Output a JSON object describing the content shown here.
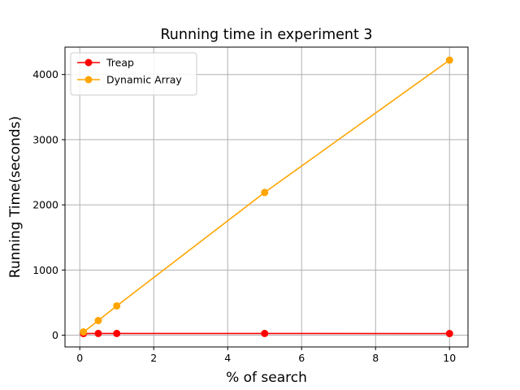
{
  "chart_data": {
    "type": "line",
    "title": "Running time in experiment 3",
    "xlabel": "% of search",
    "ylabel": "Running Time(seconds)",
    "xlim": [
      -0.4,
      10.5
    ],
    "ylim": [
      -180,
      4420
    ],
    "xticks": [
      0,
      2,
      4,
      6,
      8,
      10
    ],
    "yticks": [
      0,
      1000,
      2000,
      3000,
      4000
    ],
    "grid": true,
    "legend_position": "top-left",
    "series": [
      {
        "name": "Treap",
        "color": "#ff0000",
        "x": [
          0.1,
          0.5,
          1,
          5,
          10
        ],
        "y": [
          25,
          27,
          27,
          27,
          25
        ]
      },
      {
        "name": "Dynamic Array",
        "color": "#ffa500",
        "x": [
          0.1,
          0.5,
          1,
          5,
          10
        ],
        "y": [
          50,
          225,
          450,
          2190,
          4220
        ]
      }
    ]
  }
}
